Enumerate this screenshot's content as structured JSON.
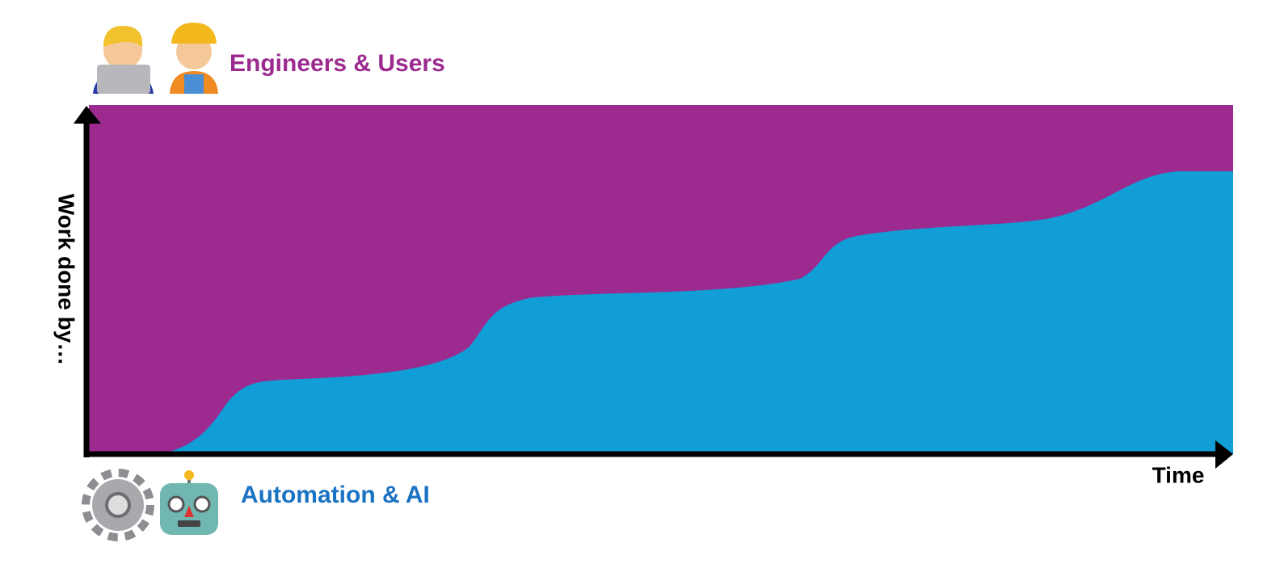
{
  "top_label": "Engineers & Users",
  "bottom_label": "Automation & AI",
  "y_axis_label": "Work done by…",
  "x_axis_label": "Time"
}
